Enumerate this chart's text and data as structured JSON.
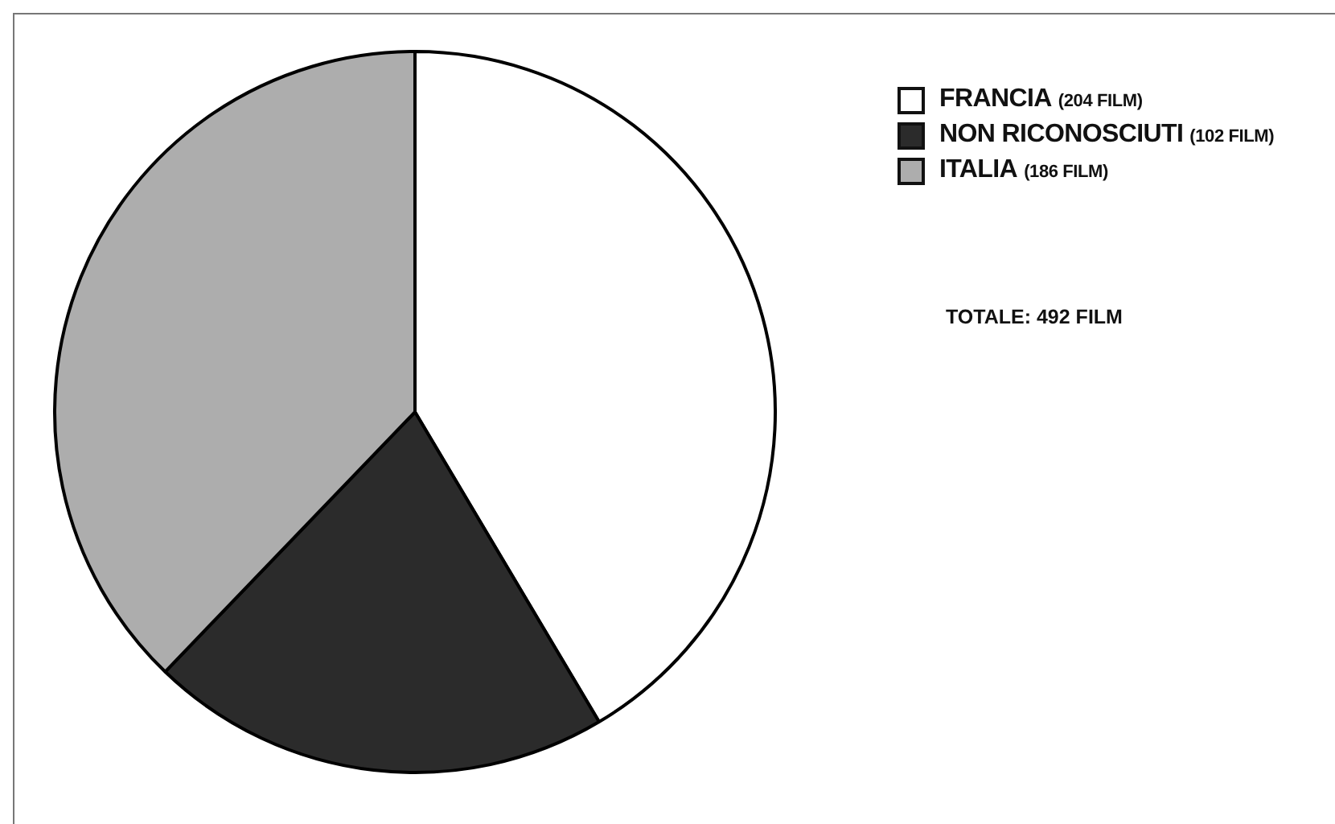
{
  "chart_data": {
    "type": "pie",
    "categories": [
      "FRANCIA",
      "NON RICONOSCIUTI",
      "ITALIA"
    ],
    "values": [
      204,
      102,
      186
    ],
    "value_labels": [
      "(204 FILM)",
      "(102 FILM)",
      "(186 FILM)"
    ],
    "colors": [
      "#ffffff",
      "#2b2b2b",
      "#adadad"
    ],
    "legend": "top right",
    "annotations": [
      "TOTALE: 492 FILM"
    ]
  }
}
